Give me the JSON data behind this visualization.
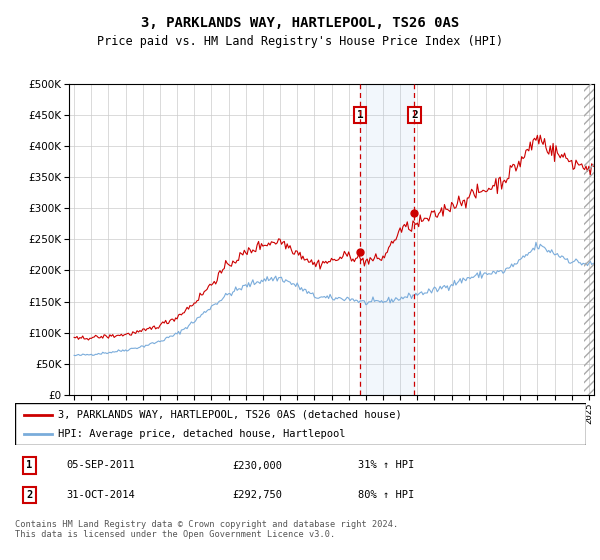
{
  "title": "3, PARKLANDS WAY, HARTLEPOOL, TS26 0AS",
  "subtitle": "Price paid vs. HM Land Registry's House Price Index (HPI)",
  "legend_line1": "3, PARKLANDS WAY, HARTLEPOOL, TS26 0AS (detached house)",
  "legend_line2": "HPI: Average price, detached house, Hartlepool",
  "annotation1_date": "05-SEP-2011",
  "annotation1_price": "£230,000",
  "annotation1_hpi": "31% ↑ HPI",
  "annotation2_date": "31-OCT-2014",
  "annotation2_price": "£292,750",
  "annotation2_hpi": "80% ↑ HPI",
  "vline1_x": 2011.67,
  "vline2_x": 2014.83,
  "sale1_x": 2011.67,
  "sale1_y": 230000,
  "sale2_x": 2014.83,
  "sale2_y": 292750,
  "red_color": "#cc0000",
  "blue_color": "#7aacdb",
  "footer": "Contains HM Land Registry data © Crown copyright and database right 2024.\nThis data is licensed under the Open Government Licence v3.0.",
  "ylim": [
    0,
    500000
  ],
  "xlim": [
    1994.7,
    2025.3
  ]
}
